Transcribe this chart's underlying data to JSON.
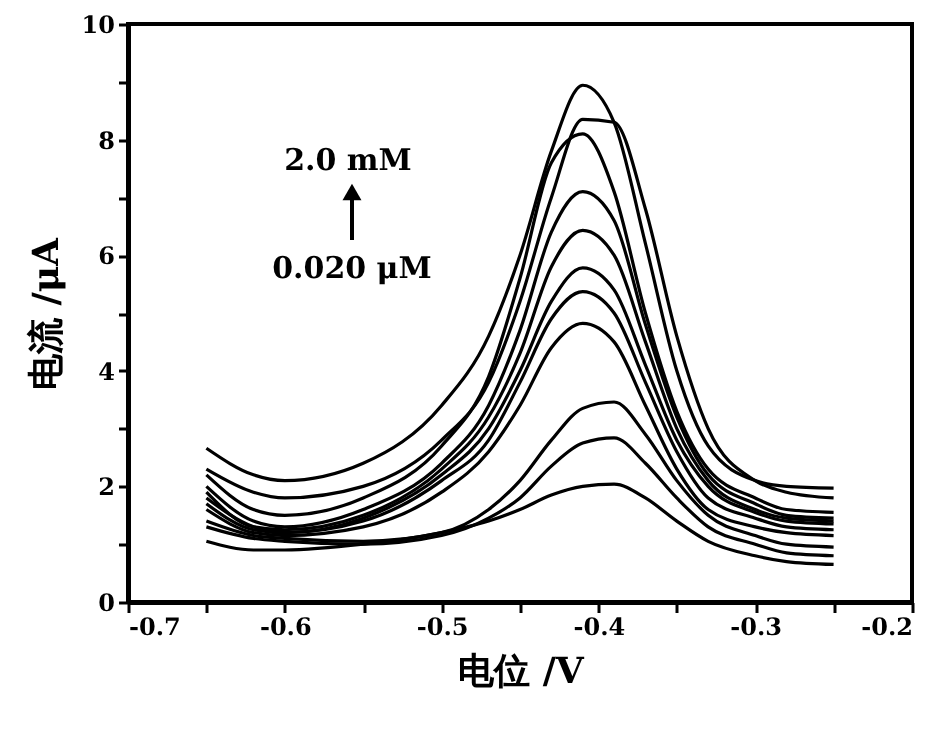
{
  "chart_data": {
    "type": "line",
    "xlabel": "电位 /V",
    "ylabel": "电流 /μA",
    "annotations": [
      "2.0 mM",
      "0.020 μM"
    ],
    "x": [
      -0.65,
      -0.62,
      -0.6,
      -0.55,
      -0.5,
      -0.47,
      -0.45,
      -0.43,
      -0.41,
      -0.39,
      -0.37,
      -0.35,
      -0.33,
      -0.3,
      -0.28,
      -0.25
    ],
    "series": [
      {
        "color": "#000000",
        "values": [
          2.66,
          2.2,
          2.1,
          2.4,
          3.4,
          4.6,
          6.0,
          7.8,
          8.94,
          8.3,
          6.2,
          4.0,
          2.7,
          2.1,
          2.0,
          1.97
        ]
      },
      {
        "color": "#000000",
        "values": [
          2.3,
          1.9,
          1.8,
          2.0,
          2.8,
          3.8,
          5.2,
          7.0,
          8.35,
          8.3,
          6.8,
          4.6,
          3.0,
          2.1,
          1.9,
          1.8
        ]
      },
      {
        "color": "#000000",
        "values": [
          2.2,
          1.6,
          1.5,
          1.8,
          2.7,
          3.9,
          5.6,
          7.6,
          8.1,
          7.1,
          5.0,
          3.3,
          2.3,
          1.8,
          1.6,
          1.55
        ]
      },
      {
        "color": "#000000",
        "values": [
          2.0,
          1.4,
          1.3,
          1.6,
          2.4,
          3.4,
          4.7,
          6.4,
          7.1,
          6.6,
          4.8,
          3.2,
          2.2,
          1.7,
          1.5,
          1.45
        ]
      },
      {
        "color": "#000000",
        "values": [
          1.9,
          1.3,
          1.25,
          1.5,
          2.3,
          3.2,
          4.3,
          5.8,
          6.43,
          6.0,
          4.5,
          3.0,
          2.1,
          1.6,
          1.45,
          1.4
        ]
      },
      {
        "color": "#000000",
        "values": [
          1.8,
          1.3,
          1.2,
          1.45,
          2.2,
          3.0,
          4.0,
          5.2,
          5.78,
          5.4,
          4.1,
          2.8,
          2.0,
          1.55,
          1.4,
          1.35
        ]
      },
      {
        "color": "#000000",
        "values": [
          1.7,
          1.25,
          1.2,
          1.4,
          2.1,
          2.8,
          3.8,
          4.9,
          5.37,
          5.0,
          3.8,
          2.6,
          1.8,
          1.45,
          1.3,
          1.25
        ]
      },
      {
        "color": "#000000",
        "values": [
          1.6,
          1.2,
          1.15,
          1.3,
          1.9,
          2.6,
          3.4,
          4.4,
          4.82,
          4.5,
          3.4,
          2.3,
          1.6,
          1.3,
          1.2,
          1.15
        ]
      },
      {
        "color": "#000000",
        "values": [
          1.4,
          1.15,
          1.1,
          1.05,
          1.2,
          1.6,
          2.1,
          2.8,
          3.35,
          3.46,
          2.9,
          2.1,
          1.5,
          1.15,
          1.0,
          0.95
        ]
      },
      {
        "color": "#000000",
        "values": [
          1.3,
          1.1,
          1.05,
          1.0,
          1.15,
          1.45,
          1.8,
          2.35,
          2.75,
          2.84,
          2.4,
          1.8,
          1.3,
          1.0,
          0.85,
          0.8
        ]
      },
      {
        "color": "#000000",
        "values": [
          1.05,
          0.9,
          0.9,
          1.0,
          1.2,
          1.4,
          1.6,
          1.85,
          2.0,
          2.04,
          1.8,
          1.4,
          1.05,
          0.8,
          0.7,
          0.65
        ]
      }
    ],
    "xlim": [
      -0.7,
      -0.2
    ],
    "xticks": [
      -0.7,
      {
        "value": -0.65,
        "label": null
      },
      -0.6,
      {
        "value": -0.55,
        "label": null
      },
      -0.5,
      {
        "value": -0.45,
        "label": null
      },
      -0.4,
      {
        "value": -0.35,
        "label": null
      },
      -0.3,
      {
        "value": -0.25,
        "label": null
      },
      -0.2
    ],
    "ylim": [
      0,
      10
    ],
    "yticks": [
      0,
      {
        "value": 1,
        "label": null
      },
      2,
      {
        "value": 3,
        "label": null
      },
      4,
      {
        "value": 5,
        "label": null
      },
      6,
      {
        "value": 7,
        "label": null
      },
      8,
      {
        "value": 9,
        "label": null
      },
      10
    ],
    "grid": false,
    "marker": "none",
    "line_style": "solid"
  }
}
